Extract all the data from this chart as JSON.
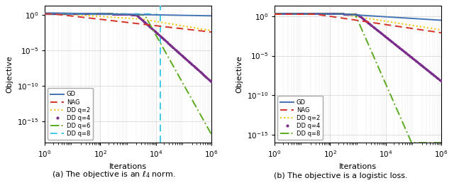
{
  "fig_width": 6.4,
  "fig_height": 2.58,
  "dpi": 100,
  "background_color": "#ffffff",
  "grid_color": "#aaaaaa",
  "xlim": [
    1,
    1000000
  ],
  "ylim_left": [
    1e-18,
    20
  ],
  "ylim_right": [
    1e-16,
    20
  ],
  "xlabel": "Iterations",
  "ylabel": "Objective",
  "caption_left": "(a) The objective is an $\\ell_4$ norm.",
  "caption_right": "(b) The objective is a logistic loss.",
  "colors": {
    "GD": "#4575b4",
    "NAG": "#d73027",
    "DD_q2": "#f4c000",
    "DD_q4": "#7B2D8B",
    "DD_q6": "#5aaa1e",
    "DD_q8": "#40c8e8"
  }
}
